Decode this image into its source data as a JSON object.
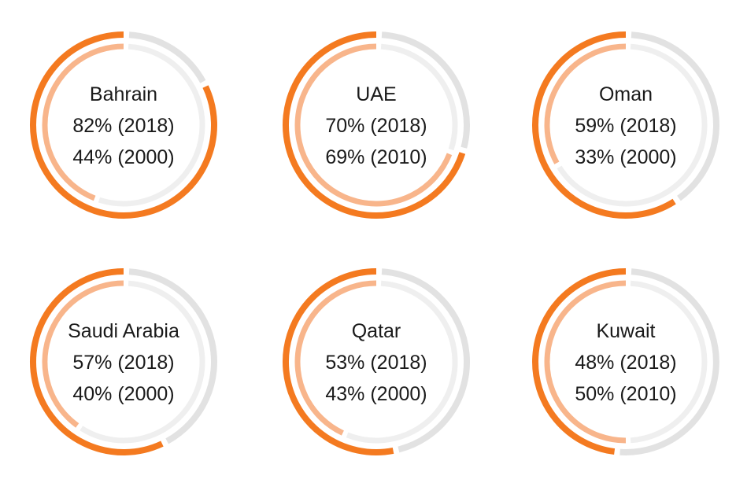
{
  "chart_data": {
    "type": "donut",
    "colors": {
      "outer_value": "#f47a20",
      "inner_value": "#f8b58b",
      "outer_track": "#e2e2e2",
      "inner_track": "#efefef"
    },
    "charts": [
      {
        "country": "Bahrain",
        "series": [
          {
            "label": "82% (2018)",
            "year": "2018",
            "value": 82
          },
          {
            "label": "44% (2000)",
            "year": "2000",
            "value": 44
          }
        ]
      },
      {
        "country": "UAE",
        "series": [
          {
            "label": "70% (2018)",
            "year": "2018",
            "value": 70
          },
          {
            "label": "69% (2010)",
            "year": "2010",
            "value": 69
          }
        ]
      },
      {
        "country": "Oman",
        "series": [
          {
            "label": "59% (2018)",
            "year": "2018",
            "value": 59
          },
          {
            "label": "33% (2000)",
            "year": "2000",
            "value": 33
          }
        ]
      },
      {
        "country": "Saudi Arabia",
        "series": [
          {
            "label": "57% (2018)",
            "year": "2018",
            "value": 57
          },
          {
            "label": "40% (2000)",
            "year": "2000",
            "value": 40
          }
        ]
      },
      {
        "country": "Qatar",
        "series": [
          {
            "label": "53% (2018)",
            "year": "2018",
            "value": 53
          },
          {
            "label": "43% (2000)",
            "year": "2000",
            "value": 43
          }
        ]
      },
      {
        "country": "Kuwait",
        "series": [
          {
            "label": "48% (2018)",
            "year": "2018",
            "value": 48
          },
          {
            "label": "50% (2010)",
            "year": "2010",
            "value": 50
          }
        ]
      }
    ]
  }
}
